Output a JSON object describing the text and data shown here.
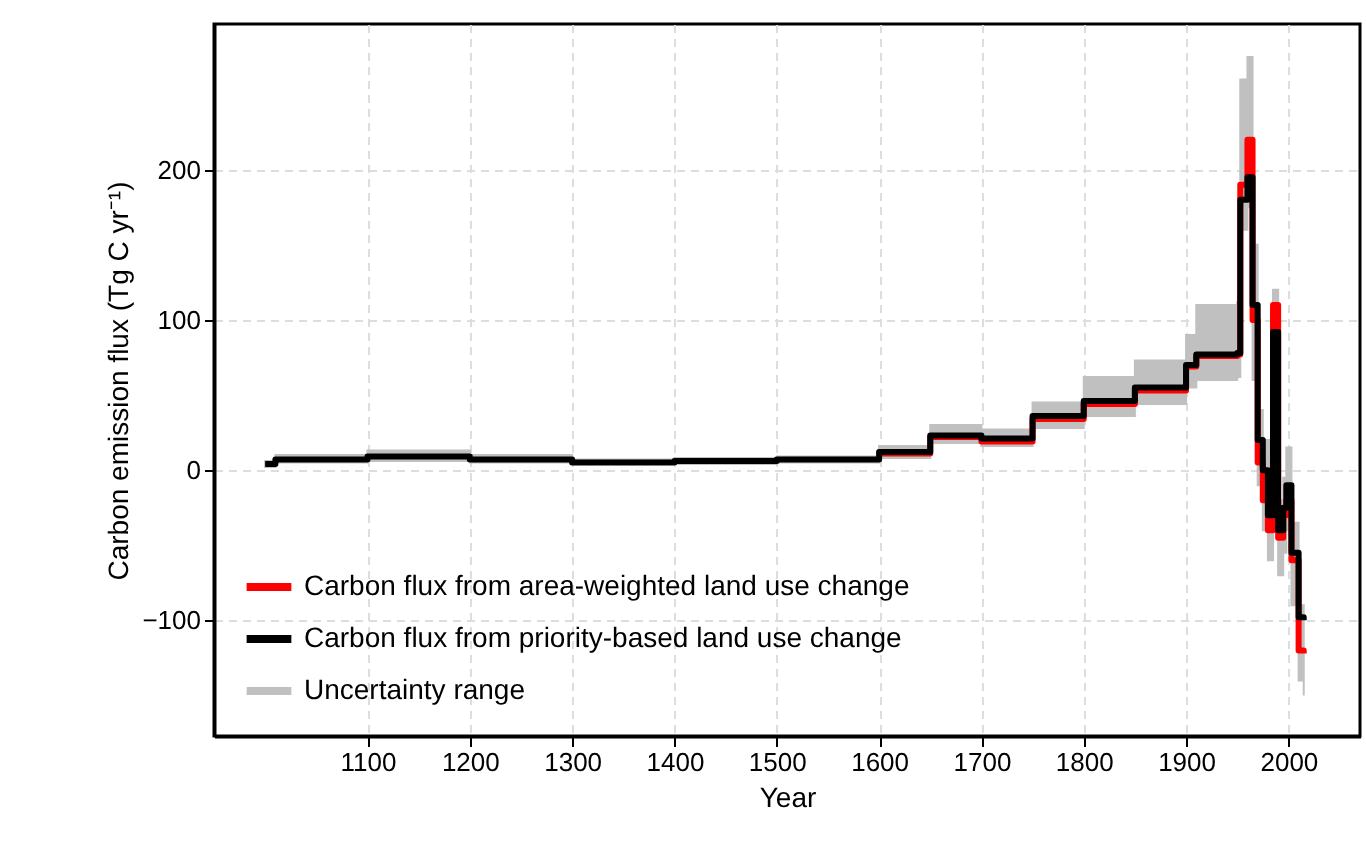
{
  "chart_data": {
    "type": "step",
    "xlabel": "Year",
    "ylabel": "Carbon emission flux (Tg C yr⁻¹)",
    "x": [
      1000,
      1010,
      1100,
      1200,
      1300,
      1400,
      1500,
      1600,
      1650,
      1700,
      1750,
      1800,
      1850,
      1900,
      1910,
      1950,
      1953,
      1960,
      1965,
      1970,
      1975,
      1980,
      1985,
      1990,
      1995,
      1998,
      2003,
      2010,
      2015
    ],
    "series": [
      {
        "name": "Carbon flux from area-weighted land use change",
        "color": "#ff0000",
        "values": [
          null,
          null,
          null,
          null,
          null,
          null,
          null,
          11,
          22,
          19,
          34,
          44,
          53,
          69,
          76,
          77,
          190,
          220,
          100,
          5,
          -20,
          -40,
          110,
          -45,
          -30,
          -20,
          -60,
          -120,
          -122
        ]
      },
      {
        "name": "Carbon flux from priority-based land use change",
        "color": "#000000",
        "values": [
          4,
          7,
          9,
          7,
          5,
          6,
          7,
          12,
          23,
          21,
          36,
          46,
          55,
          70,
          77,
          78,
          180,
          195,
          110,
          20,
          0,
          -30,
          92,
          -40,
          -25,
          -10,
          -55,
          -98,
          -100
        ],
        "lower": [
          2,
          5,
          6,
          5,
          4,
          4,
          5,
          8,
          18,
          16,
          28,
          36,
          44,
          55,
          60,
          62,
          160,
          175,
          60,
          -10,
          -40,
          -60,
          60,
          -70,
          -55,
          -40,
          -90,
          -140,
          -150
        ],
        "upper": [
          6,
          10,
          13,
          10,
          7,
          8,
          9,
          16,
          30,
          27,
          45,
          62,
          73,
          90,
          110,
          112,
          260,
          275,
          150,
          40,
          20,
          20,
          120,
          -20,
          -5,
          15,
          -35,
          -90,
          -95
        ]
      }
    ],
    "annotations": [
      "Uncertainty range"
    ],
    "xlim": [
      950,
      2070
    ],
    "ylim": [
      -177,
      297
    ],
    "xticks": [
      1100,
      1200,
      1300,
      1400,
      1500,
      1600,
      1700,
      1800,
      1900,
      2000
    ],
    "yticks": [
      -100,
      0,
      100,
      200
    ],
    "grid": true,
    "legend": "bottom left"
  }
}
